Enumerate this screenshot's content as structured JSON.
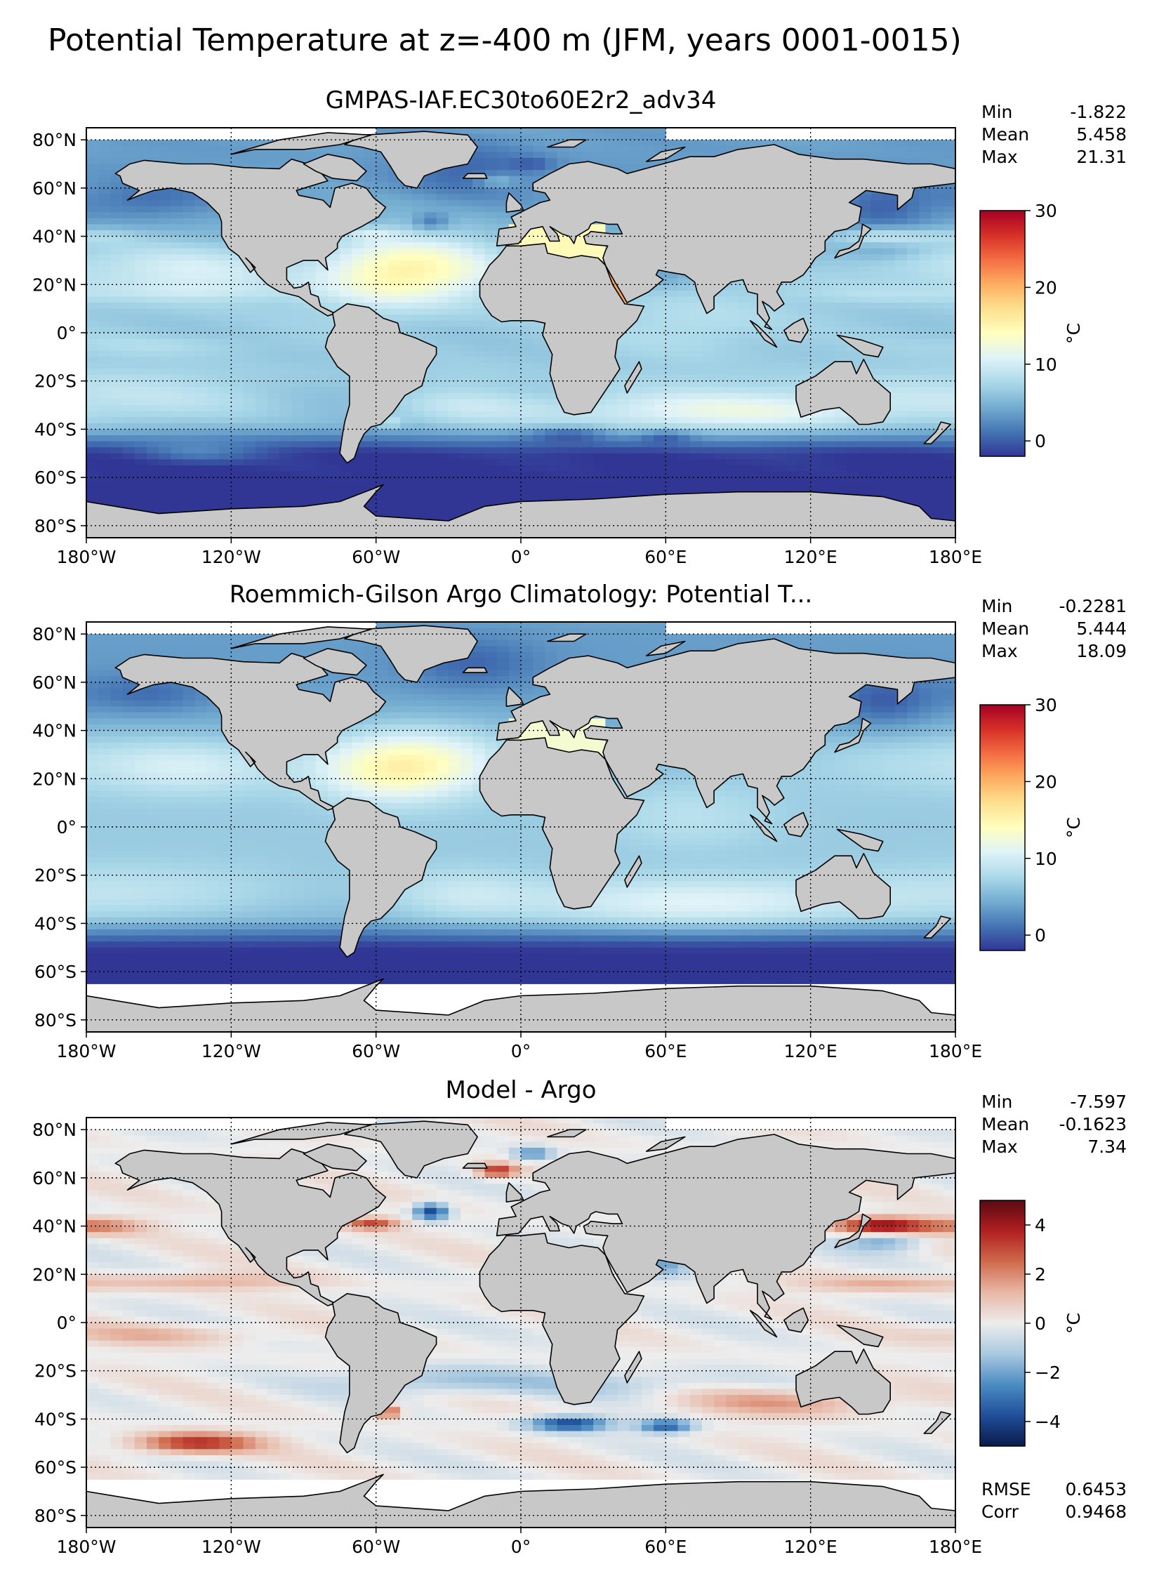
{
  "figure": {
    "suptitle": "Potential Temperature at z=-400 m (JFM, years 0001-0015)"
  },
  "colors": {
    "land": "#c8c8c8",
    "ocean_missing": "#ffffff",
    "full_cmap": [
      "#313695",
      "#4575b4",
      "#74add1",
      "#abd9e9",
      "#e0f3f8",
      "#ffffbf",
      "#fee090",
      "#fdae61",
      "#f46d43",
      "#d73027",
      "#a50026"
    ],
    "diff_cmap": [
      "#0b1a4a",
      "#1f4f9a",
      "#4c8cc3",
      "#a9c9e0",
      "#ededed",
      "#e8b8a6",
      "#cf6a4c",
      "#b02020",
      "#5a0a12"
    ]
  },
  "chart_data": [
    {
      "type": "heatmap",
      "title": "GMPAS-IAF.EC30to60E2r2_adv34",
      "field": "model",
      "xticks": [
        "180°W",
        "120°W",
        "60°W",
        "0°",
        "60°E",
        "120°E",
        "180°E"
      ],
      "yticks": [
        "80°N",
        "60°N",
        "40°N",
        "20°N",
        "0°",
        "20°S",
        "40°S",
        "60°S",
        "80°S"
      ],
      "xlim": [
        -180,
        180
      ],
      "ylim": [
        -85,
        85
      ],
      "grid": true,
      "stats": [
        {
          "label": "Min",
          "value": "-1.822"
        },
        {
          "label": "Mean",
          "value": "5.458"
        },
        {
          "label": "Max",
          "value": "21.31"
        }
      ],
      "colorbar": {
        "label": "°C",
        "ticks": [
          "0",
          "10",
          "20",
          "30"
        ],
        "tick_values": [
          0,
          10,
          20,
          30
        ],
        "range": [
          -2,
          30
        ]
      }
    },
    {
      "type": "heatmap",
      "title": "Roemmich-Gilson Argo Climatology: Potential T...",
      "field": "obs",
      "xticks": [
        "180°W",
        "120°W",
        "60°W",
        "0°",
        "60°E",
        "120°E",
        "180°E"
      ],
      "yticks": [
        "80°N",
        "60°N",
        "40°N",
        "20°N",
        "0°",
        "20°S",
        "40°S",
        "60°S",
        "80°S"
      ],
      "xlim": [
        -180,
        180
      ],
      "ylim": [
        -85,
        85
      ],
      "grid": true,
      "stats": [
        {
          "label": "Min",
          "value": "-0.2281"
        },
        {
          "label": "Mean",
          "value": "5.444"
        },
        {
          "label": "Max",
          "value": "18.09"
        }
      ],
      "colorbar": {
        "label": "°C",
        "ticks": [
          "0",
          "10",
          "20",
          "30"
        ],
        "tick_values": [
          0,
          10,
          20,
          30
        ],
        "range": [
          -2,
          30
        ]
      }
    },
    {
      "type": "heatmap",
      "title": "Model - Argo",
      "field": "diff",
      "xticks": [
        "180°W",
        "120°W",
        "60°W",
        "0°",
        "60°E",
        "120°E",
        "180°E"
      ],
      "yticks": [
        "80°N",
        "60°N",
        "40°N",
        "20°N",
        "0°",
        "20°S",
        "40°S",
        "60°S",
        "80°S"
      ],
      "xlim": [
        -180,
        180
      ],
      "ylim": [
        -85,
        85
      ],
      "grid": true,
      "stats": [
        {
          "label": "Min",
          "value": "-7.597"
        },
        {
          "label": "Mean",
          "value": "-0.1623"
        },
        {
          "label": "Max",
          "value": "7.34"
        }
      ],
      "extra_stats": [
        {
          "label": "RMSE",
          "value": "0.6453"
        },
        {
          "label": "Corr",
          "value": "0.9468"
        }
      ],
      "colorbar": {
        "label": "°C",
        "ticks": [
          "4",
          "2",
          "0",
          "−2",
          "−4"
        ],
        "tick_values": [
          4,
          2,
          0,
          -2,
          -4
        ],
        "range": [
          -5,
          5
        ]
      }
    }
  ]
}
